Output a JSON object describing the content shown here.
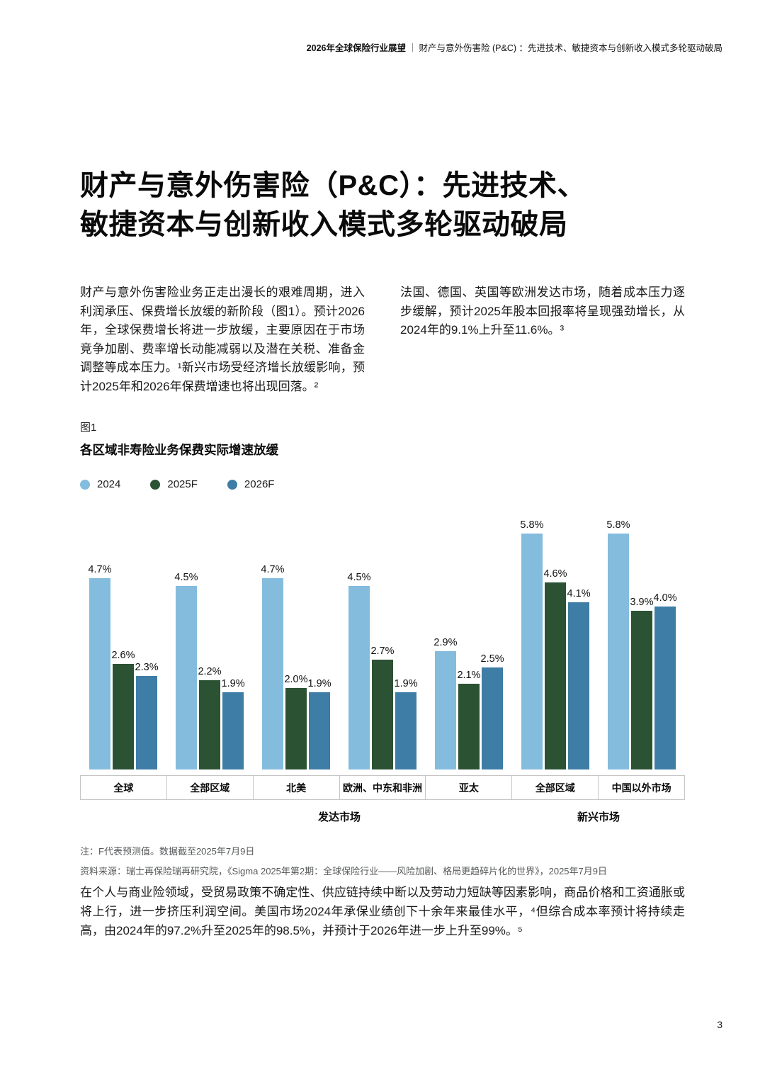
{
  "page": {
    "header_bold": "2026年全球保险行业展望",
    "header_sep": "｜",
    "header_rest": "财产与意外伤害险 (P&C) ：先进技术、敏捷资本与创新收入模式多轮驱动破局",
    "page_number": "3"
  },
  "title": {
    "line1": "财产与意外伤害险（P&C）：先进技术、",
    "line2": "敏捷资本与创新收入模式多轮驱动破局"
  },
  "intro": {
    "left": "财产与意外伤害险业务正走出漫长的艰难周期，进入利润承压、保费增长放缓的新阶段（图1）。预计2026年，全球保费增长将进一步放缓，主要原因在于市场竞争加剧、费率增长动能减弱以及潜在关税、准备金调整等成本压力。¹新兴市场受经济增长放缓影响，预计2025年和2026年保费增速也将出现回落。²",
    "right": "法国、德国、英国等欧洲发达市场，随着成本压力逐步缓解，预计2025年股本回报率将呈现强劲增长，从2024年的9.1%上升至11.6%。³"
  },
  "figure": {
    "label": "图1",
    "title": "各区域非寿险业务保费实际增速放缓",
    "note1": "注：F代表预测值。数据截至2025年7月9日",
    "note2": "资料来源：瑞士再保险瑞再研究院，《Sigma 2025年第2期：全球保险行业——风险加剧、格局更趋碎片化的世界》，2025年7月9日"
  },
  "chart_data": {
    "type": "bar",
    "title": "各区域非寿险业务保费实际增速放缓",
    "categories": [
      "全球",
      "全部区域",
      "北美",
      "欧洲、中东和非洲",
      "亚太",
      "全部区域",
      "中国以外市场"
    ],
    "group_spans": [
      {
        "label": "",
        "span": 1
      },
      {
        "label": "发达市场",
        "span": 4
      },
      {
        "label": "新兴市场",
        "span": 2
      }
    ],
    "series": [
      {
        "name": "2024",
        "color": "#84BCDE",
        "values": [
          4.7,
          4.5,
          4.7,
          4.5,
          2.9,
          5.8,
          5.8
        ]
      },
      {
        "name": "2025F",
        "color": "#2C5234",
        "values": [
          2.6,
          2.2,
          2.0,
          2.7,
          2.1,
          4.6,
          3.9
        ]
      },
      {
        "name": "2026F",
        "color": "#3E7DA6",
        "values": [
          2.3,
          1.9,
          1.9,
          1.9,
          2.5,
          4.1,
          4.0
        ]
      }
    ],
    "value_suffix": "%",
    "ylim": [
      0,
      6
    ],
    "ymax": 6,
    "grid": false,
    "legend_position": "top-left"
  },
  "body": {
    "paragraph": "在个人与商业险领域，受贸易政策不确定性、供应链持续中断以及劳动力短缺等因素影响，商品价格和工资通胀或将上行，进一步挤压利润空间。美国市场2024年承保业绩创下十余年来最佳水平，⁴但综合成本率预计将持续走高，由2024年的97.2%升至2025年的98.5%，并预计于2026年进一步上升至99%。⁵"
  }
}
